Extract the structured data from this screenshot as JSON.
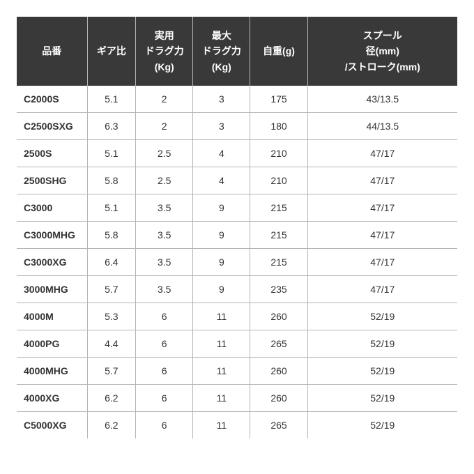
{
  "table": {
    "background_color": "#ffffff",
    "header_bg_color": "#393939",
    "header_text_color": "#ffffff",
    "border_color": "#b5b5b5",
    "text_color": "#333333",
    "header_fontsize": 14,
    "body_fontsize": 14,
    "columns": [
      {
        "label": "品番",
        "width_pct": 16,
        "align": "left"
      },
      {
        "label": "ギア比",
        "width_pct": 11,
        "align": "center"
      },
      {
        "label": "実用\nドラグ力\n(Kg)",
        "width_pct": 13,
        "align": "center"
      },
      {
        "label": "最大\nドラグ力\n(Kg)",
        "width_pct": 13,
        "align": "center"
      },
      {
        "label": "自重(g)",
        "width_pct": 13,
        "align": "center"
      },
      {
        "label": "スプール\n径(mm)\n/ストローク(mm)",
        "width_pct": 34,
        "align": "center"
      }
    ],
    "rows": [
      [
        "C2000S",
        "5.1",
        "2",
        "3",
        "175",
        "43/13.5"
      ],
      [
        "C2500SXG",
        "6.3",
        "2",
        "3",
        "180",
        "44/13.5"
      ],
      [
        "2500S",
        "5.1",
        "2.5",
        "4",
        "210",
        "47/17"
      ],
      [
        "2500SHG",
        "5.8",
        "2.5",
        "4",
        "210",
        "47/17"
      ],
      [
        "C3000",
        "5.1",
        "3.5",
        "9",
        "215",
        "47/17"
      ],
      [
        "C3000MHG",
        "5.8",
        "3.5",
        "9",
        "215",
        "47/17"
      ],
      [
        "C3000XG",
        "6.4",
        "3.5",
        "9",
        "215",
        "47/17"
      ],
      [
        "3000MHG",
        "5.7",
        "3.5",
        "9",
        "235",
        "47/17"
      ],
      [
        "4000M",
        "5.3",
        "6",
        "11",
        "260",
        "52/19"
      ],
      [
        "4000PG",
        "4.4",
        "6",
        "11",
        "265",
        "52/19"
      ],
      [
        "4000MHG",
        "5.7",
        "6",
        "11",
        "260",
        "52/19"
      ],
      [
        "4000XG",
        "6.2",
        "6",
        "11",
        "260",
        "52/19"
      ],
      [
        "C5000XG",
        "6.2",
        "6",
        "11",
        "265",
        "52/19"
      ]
    ]
  }
}
